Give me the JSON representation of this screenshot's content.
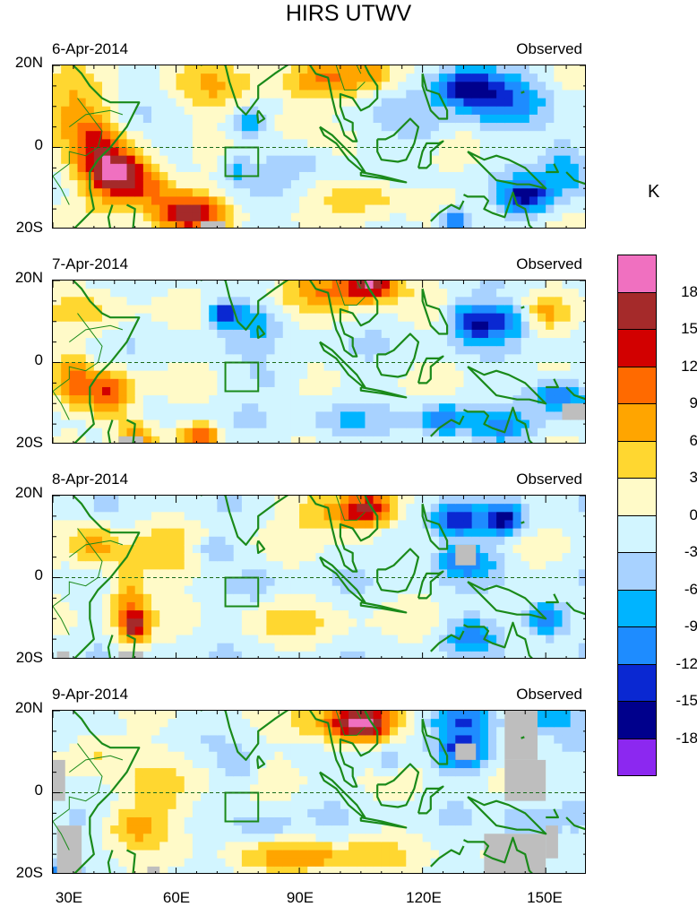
{
  "title": "HIRS UTWV",
  "unit": "K",
  "panels": [
    {
      "date": "6-Apr-2014",
      "tag": "Observed"
    },
    {
      "date": "7-Apr-2014",
      "tag": "Observed"
    },
    {
      "date": "8-Apr-2014",
      "tag": "Observed"
    },
    {
      "date": "9-Apr-2014",
      "tag": "Observed"
    }
  ],
  "y_labels": [
    "20N",
    "0",
    "20S"
  ],
  "x_labels": [
    "30E",
    "60E",
    "90E",
    "120E",
    "150E"
  ],
  "colorbar": {
    "labels": [
      "18",
      "15",
      "12",
      "9",
      "6",
      "3",
      "0",
      "-3",
      "-6",
      "-9",
      "-12",
      "-15",
      "-18"
    ],
    "colors": [
      "#f070c0",
      "#a52a2a",
      "#d20000",
      "#ff6a00",
      "#ffa500",
      "#ffd730",
      "#fffac8",
      "#d2f5ff",
      "#a8d2ff",
      "#00b4ff",
      "#1e8cff",
      "#0a28d2",
      "#00008c",
      "#8c28f0"
    ]
  },
  "map_extent": {
    "lon": [
      30,
      160
    ],
    "lat": [
      -20,
      20
    ]
  },
  "colors": {
    "coast": "#1a8a1a",
    "missing": "#bebebe",
    "frame": "#000000"
  }
}
